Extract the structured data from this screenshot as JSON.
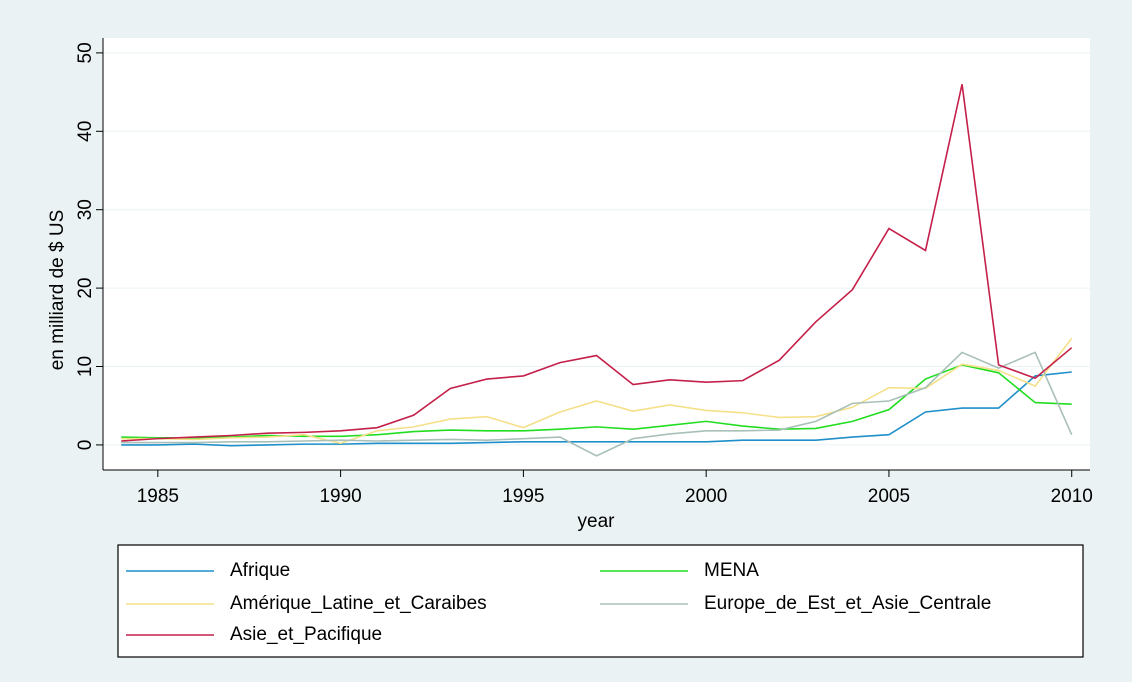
{
  "chart_data": {
    "type": "line",
    "ylabel": "en milliard de $ US",
    "xlabel": "year",
    "x": [
      1984,
      1985,
      1986,
      1987,
      1988,
      1989,
      1990,
      1991,
      1992,
      1993,
      1994,
      1995,
      1996,
      1997,
      1998,
      1999,
      2000,
      2001,
      2002,
      2003,
      2004,
      2005,
      2006,
      2007,
      2008,
      2009,
      2010
    ],
    "series": [
      {
        "name": "Afrique",
        "color": "#1f8fc9",
        "values": [
          0,
          0,
          0.1,
          -0.1,
          0,
          0.1,
          0.1,
          0.2,
          0.2,
          0.2,
          0.3,
          0.4,
          0.4,
          0.4,
          0.4,
          0.4,
          0.4,
          0.6,
          0.6,
          0.6,
          1.0,
          1.3,
          4.2,
          4.7,
          4.7,
          8.8,
          9.3
        ]
      },
      {
        "name": "MENA",
        "color": "#22dd22",
        "values": [
          1.0,
          0.9,
          0.9,
          1.0,
          1.2,
          1.1,
          1.1,
          1.3,
          1.7,
          1.9,
          1.8,
          1.8,
          2.0,
          2.3,
          2.0,
          2.5,
          3.0,
          2.4,
          2.0,
          2.1,
          3.0,
          4.5,
          8.4,
          10.2,
          9.2,
          5.4,
          5.2
        ]
      },
      {
        "name": "Amérique_Latine_et_Caraibes",
        "color": "#f5e08a",
        "values": [
          0.8,
          0.8,
          0.7,
          0.9,
          1.0,
          1.3,
          0.2,
          1.8,
          2.3,
          3.3,
          3.6,
          2.2,
          4.2,
          5.6,
          4.3,
          5.1,
          4.4,
          4.1,
          3.5,
          3.6,
          4.8,
          7.3,
          7.2,
          10.3,
          9.5,
          7.5,
          13.6
        ]
      },
      {
        "name": "Europe_de_Est_et_Asie_Centrale",
        "color": "#a8c0b8",
        "values": [
          0.3,
          0.3,
          0.3,
          0.4,
          0.4,
          0.5,
          0.6,
          0.5,
          0.6,
          0.7,
          0.6,
          0.8,
          1.0,
          -1.4,
          0.8,
          1.4,
          1.8,
          1.8,
          1.9,
          3.0,
          5.3,
          5.6,
          7.3,
          11.8,
          9.8,
          11.8,
          1.3
        ]
      },
      {
        "name": "Asie_et_Pacifique",
        "color": "#c4204a",
        "values": [
          0.5,
          0.8,
          1.0,
          1.2,
          1.5,
          1.6,
          1.8,
          2.2,
          3.8,
          7.2,
          8.4,
          8.8,
          10.5,
          11.4,
          7.7,
          8.3,
          8.0,
          8.2,
          10.8,
          15.7,
          19.8,
          27.6,
          24.8,
          46,
          10.2,
          8.5,
          12.4
        ]
      }
    ],
    "xlim": [
      1983.5,
      2010.5
    ],
    "xticks": [
      1985,
      1990,
      1995,
      2000,
      2005,
      2010
    ],
    "ylim": [
      -3.2,
      51.9
    ],
    "yticks": [
      0,
      10,
      20,
      30,
      40,
      50
    ],
    "grid": true
  }
}
